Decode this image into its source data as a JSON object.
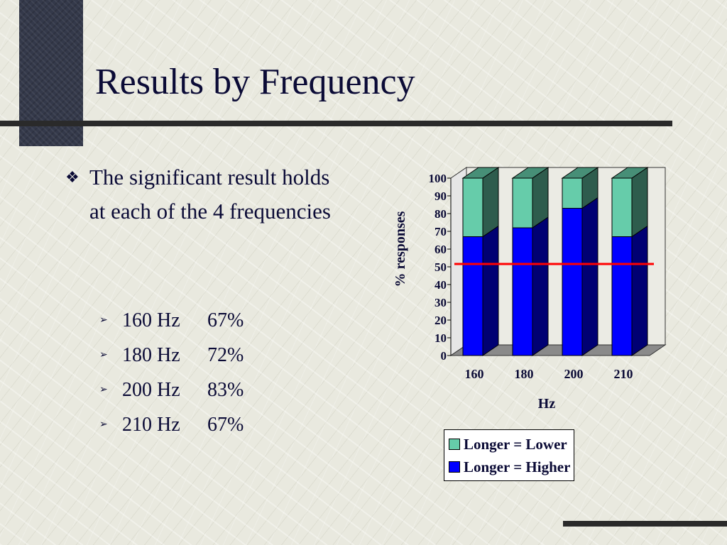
{
  "slide": {
    "title": "Results by Frequency",
    "bullet": "The significant result holds at each of the 4 frequencies",
    "items": [
      {
        "freq": "160 Hz",
        "pct": "67%"
      },
      {
        "freq": "180 Hz",
        "pct": "72%"
      },
      {
        "freq": "200 Hz",
        "pct": "83%"
      },
      {
        "freq": "210 Hz",
        "pct": "67%"
      }
    ],
    "icons": {
      "bullet": "diamond-bullet-icon",
      "sub_bullet": "arrow-bullet-icon"
    }
  },
  "chart_data": {
    "type": "bar",
    "stacked": true,
    "three_d": true,
    "categories": [
      "160",
      "180",
      "200",
      "210"
    ],
    "series": [
      {
        "name": "Longer = Higher",
        "values": [
          67,
          72,
          83,
          67
        ],
        "color": "#0000ff"
      },
      {
        "name": "Longer = Lower",
        "values": [
          33,
          28,
          17,
          33
        ],
        "color": "#66ccaa"
      }
    ],
    "reference_line": {
      "value": 50,
      "color": "#ff0000"
    },
    "xlabel": "Hz",
    "ylabel": "% responses",
    "ylim": [
      0,
      100
    ],
    "yticks": [
      "0",
      "10",
      "20",
      "30",
      "40",
      "50",
      "60",
      "70",
      "80",
      "90",
      "100"
    ],
    "legend": [
      "Longer = Lower",
      "Longer = Higher"
    ],
    "legend_position": "bottom"
  }
}
